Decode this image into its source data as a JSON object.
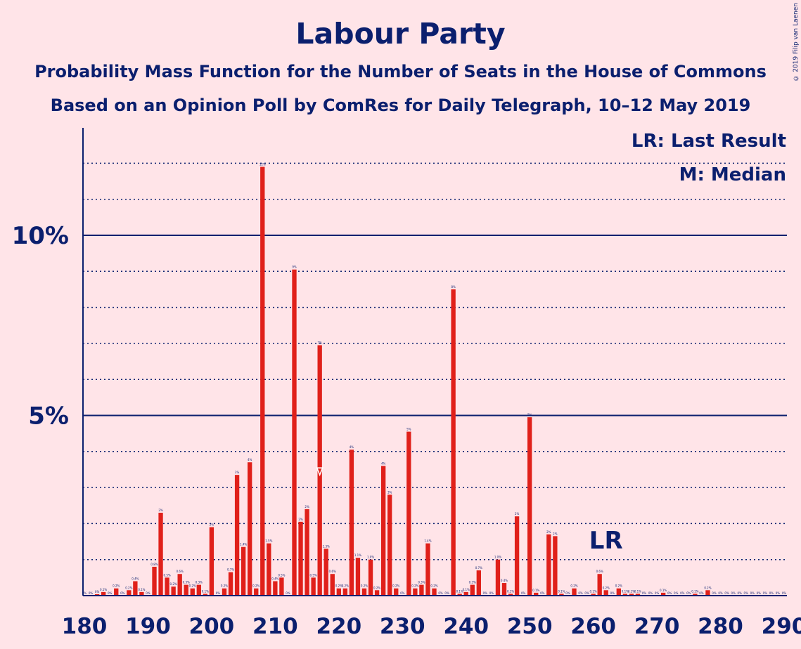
{
  "chart_data": {
    "type": "bar",
    "title": "Labour Party",
    "subtitle": "Probability Mass Function for the Number of Seats in the House of Commons",
    "subtitle2": "Based on an Opinion Poll by ComRes for Daily Telegraph, 10–12 May 2019",
    "copyright": "© 2019 Filip van Laenen",
    "legend": [
      "LR: Last Result",
      "M: Median"
    ],
    "last_result_seat": 262,
    "last_result_label": "LR",
    "median_seat": 217,
    "xlim": [
      180,
      290
    ],
    "ylim": [
      0,
      12.9
    ],
    "x_ticks": [
      "180",
      "190",
      "200",
      "210",
      "220",
      "230",
      "240",
      "250",
      "260",
      "270",
      "280",
      "290"
    ],
    "y_ticks": [
      {
        "value": 5,
        "label": "5%"
      },
      {
        "value": 10,
        "label": "10%"
      }
    ],
    "bar_color": "#e0201a",
    "accent_color": "#0b1f6e",
    "background_color": "#ffe4e8",
    "bars": [
      {
        "x": 180,
        "y": 0,
        "label": "0%"
      },
      {
        "x": 181,
        "y": 0,
        "label": "0%"
      },
      {
        "x": 182,
        "y": 0.04,
        "label": "0%"
      },
      {
        "x": 183,
        "y": 0.1,
        "label": "0.1%"
      },
      {
        "x": 184,
        "y": 0,
        "label": "0%"
      },
      {
        "x": 185,
        "y": 0.2,
        "label": "0.2%"
      },
      {
        "x": 186,
        "y": 0,
        "label": "0%"
      },
      {
        "x": 187,
        "y": 0.15,
        "label": "0.2%"
      },
      {
        "x": 188,
        "y": 0.4,
        "label": "0.4%"
      },
      {
        "x": 189,
        "y": 0.1,
        "label": "0.1%"
      },
      {
        "x": 190,
        "y": 0,
        "label": "0%"
      },
      {
        "x": 191,
        "y": 0.8,
        "label": "0.8%"
      },
      {
        "x": 192,
        "y": 2.3,
        "label": "2%"
      },
      {
        "x": 193,
        "y": 0.5,
        "label": "0.5%"
      },
      {
        "x": 194,
        "y": 0.25,
        "label": "0.2%"
      },
      {
        "x": 195,
        "y": 0.6,
        "label": "0.6%"
      },
      {
        "x": 196,
        "y": 0.3,
        "label": "0.3%"
      },
      {
        "x": 197,
        "y": 0.2,
        "label": "0.2%"
      },
      {
        "x": 198,
        "y": 0.3,
        "label": "0.3%"
      },
      {
        "x": 199,
        "y": 0.05,
        "label": "0.1%"
      },
      {
        "x": 200,
        "y": 1.9,
        "label": "2%"
      },
      {
        "x": 201,
        "y": 0,
        "label": "0%"
      },
      {
        "x": 202,
        "y": 0.2,
        "label": "0.2%"
      },
      {
        "x": 203,
        "y": 0.65,
        "label": "0.7%"
      },
      {
        "x": 204,
        "y": 3.35,
        "label": "3%"
      },
      {
        "x": 205,
        "y": 1.35,
        "label": "1.4%"
      },
      {
        "x": 206,
        "y": 3.7,
        "label": "4%"
      },
      {
        "x": 207,
        "y": 0.2,
        "label": "0.2%"
      },
      {
        "x": 208,
        "y": 11.9,
        "label": "12%"
      },
      {
        "x": 209,
        "y": 1.45,
        "label": "1.5%"
      },
      {
        "x": 210,
        "y": 0.4,
        "label": "0.4%"
      },
      {
        "x": 211,
        "y": 0.5,
        "label": "0.5%"
      },
      {
        "x": 212,
        "y": 0,
        "label": "0%"
      },
      {
        "x": 213,
        "y": 9.05,
        "label": "9%"
      },
      {
        "x": 214,
        "y": 2.05,
        "label": "2%"
      },
      {
        "x": 215,
        "y": 2.4,
        "label": "2%"
      },
      {
        "x": 216,
        "y": 0.5,
        "label": "0.5%"
      },
      {
        "x": 217,
        "y": 6.95,
        "label": "7%"
      },
      {
        "x": 218,
        "y": 1.3,
        "label": "1.3%"
      },
      {
        "x": 219,
        "y": 0.6,
        "label": "0.6%"
      },
      {
        "x": 220,
        "y": 0.2,
        "label": "0.2%"
      },
      {
        "x": 221,
        "y": 0.2,
        "label": "0.2%"
      },
      {
        "x": 222,
        "y": 4.05,
        "label": "4%"
      },
      {
        "x": 223,
        "y": 1.05,
        "label": "1.1%"
      },
      {
        "x": 224,
        "y": 0.2,
        "label": "0.2%"
      },
      {
        "x": 225,
        "y": 1.0,
        "label": "1.0%"
      },
      {
        "x": 226,
        "y": 0.15,
        "label": "0.2%"
      },
      {
        "x": 227,
        "y": 3.6,
        "label": "4%"
      },
      {
        "x": 228,
        "y": 2.8,
        "label": "3%"
      },
      {
        "x": 229,
        "y": 0.2,
        "label": "0.2%"
      },
      {
        "x": 230,
        "y": 0,
        "label": "0%"
      },
      {
        "x": 231,
        "y": 4.55,
        "label": "5%"
      },
      {
        "x": 232,
        "y": 0.2,
        "label": "0.2%"
      },
      {
        "x": 233,
        "y": 0.3,
        "label": "0.3%"
      },
      {
        "x": 234,
        "y": 1.45,
        "label": "1.4%"
      },
      {
        "x": 235,
        "y": 0.2,
        "label": "0.2%"
      },
      {
        "x": 236,
        "y": 0,
        "label": "0%"
      },
      {
        "x": 237,
        "y": 0,
        "label": "0%"
      },
      {
        "x": 238,
        "y": 8.5,
        "label": "8%"
      },
      {
        "x": 239,
        "y": 0.05,
        "label": "0.1%"
      },
      {
        "x": 240,
        "y": 0.1,
        "label": "0.1%"
      },
      {
        "x": 241,
        "y": 0.3,
        "label": "0.3%"
      },
      {
        "x": 242,
        "y": 0.7,
        "label": "0.7%"
      },
      {
        "x": 243,
        "y": 0,
        "label": "0%"
      },
      {
        "x": 244,
        "y": 0,
        "label": "0%"
      },
      {
        "x": 245,
        "y": 1.0,
        "label": "1.0%"
      },
      {
        "x": 246,
        "y": 0.35,
        "label": "0.4%"
      },
      {
        "x": 247,
        "y": 0.05,
        "label": "0.1%"
      },
      {
        "x": 248,
        "y": 2.2,
        "label": "2%"
      },
      {
        "x": 249,
        "y": 0,
        "label": "0%"
      },
      {
        "x": 250,
        "y": 4.95,
        "label": "5%"
      },
      {
        "x": 251,
        "y": 0.08,
        "label": "0.1%"
      },
      {
        "x": 252,
        "y": 0,
        "label": "0%"
      },
      {
        "x": 253,
        "y": 1.7,
        "label": "2%"
      },
      {
        "x": 254,
        "y": 1.65,
        "label": "2%"
      },
      {
        "x": 255,
        "y": 0.05,
        "label": "0.1%"
      },
      {
        "x": 256,
        "y": 0,
        "label": "0%"
      },
      {
        "x": 257,
        "y": 0.2,
        "label": "0.2%"
      },
      {
        "x": 258,
        "y": 0,
        "label": "0%"
      },
      {
        "x": 259,
        "y": 0,
        "label": "0%"
      },
      {
        "x": 260,
        "y": 0.05,
        "label": "0.1%"
      },
      {
        "x": 261,
        "y": 0.6,
        "label": "0.6%"
      },
      {
        "x": 262,
        "y": 0.15,
        "label": "0.2%"
      },
      {
        "x": 263,
        "y": 0,
        "label": "0%"
      },
      {
        "x": 264,
        "y": 0.2,
        "label": "0.2%"
      },
      {
        "x": 265,
        "y": 0.05,
        "label": "0.1%"
      },
      {
        "x": 266,
        "y": 0.05,
        "label": "0.1%"
      },
      {
        "x": 267,
        "y": 0.05,
        "label": "0.1%"
      },
      {
        "x": 268,
        "y": 0,
        "label": "0%"
      },
      {
        "x": 269,
        "y": 0,
        "label": "0%"
      },
      {
        "x": 270,
        "y": 0,
        "label": "0%"
      },
      {
        "x": 271,
        "y": 0.08,
        "label": "0.1%"
      },
      {
        "x": 272,
        "y": 0,
        "label": "0%"
      },
      {
        "x": 273,
        "y": 0,
        "label": "0%"
      },
      {
        "x": 274,
        "y": 0,
        "label": "0%"
      },
      {
        "x": 275,
        "y": 0,
        "label": "0%"
      },
      {
        "x": 276,
        "y": 0.05,
        "label": "0.1%"
      },
      {
        "x": 277,
        "y": 0,
        "label": "0%"
      },
      {
        "x": 278,
        "y": 0.15,
        "label": "0.2%"
      },
      {
        "x": 279,
        "y": 0,
        "label": "0%"
      },
      {
        "x": 280,
        "y": 0,
        "label": "0%"
      },
      {
        "x": 281,
        "y": 0,
        "label": "0%"
      },
      {
        "x": 282,
        "y": 0,
        "label": "0%"
      },
      {
        "x": 283,
        "y": 0,
        "label": "0%"
      },
      {
        "x": 284,
        "y": 0,
        "label": "0%"
      },
      {
        "x": 285,
        "y": 0,
        "label": "0%"
      },
      {
        "x": 286,
        "y": 0,
        "label": "0%"
      },
      {
        "x": 287,
        "y": 0,
        "label": "0%"
      },
      {
        "x": 288,
        "y": 0,
        "label": "0%"
      },
      {
        "x": 289,
        "y": 0,
        "label": "0%"
      },
      {
        "x": 290,
        "y": 0,
        "label": "0%"
      }
    ]
  }
}
